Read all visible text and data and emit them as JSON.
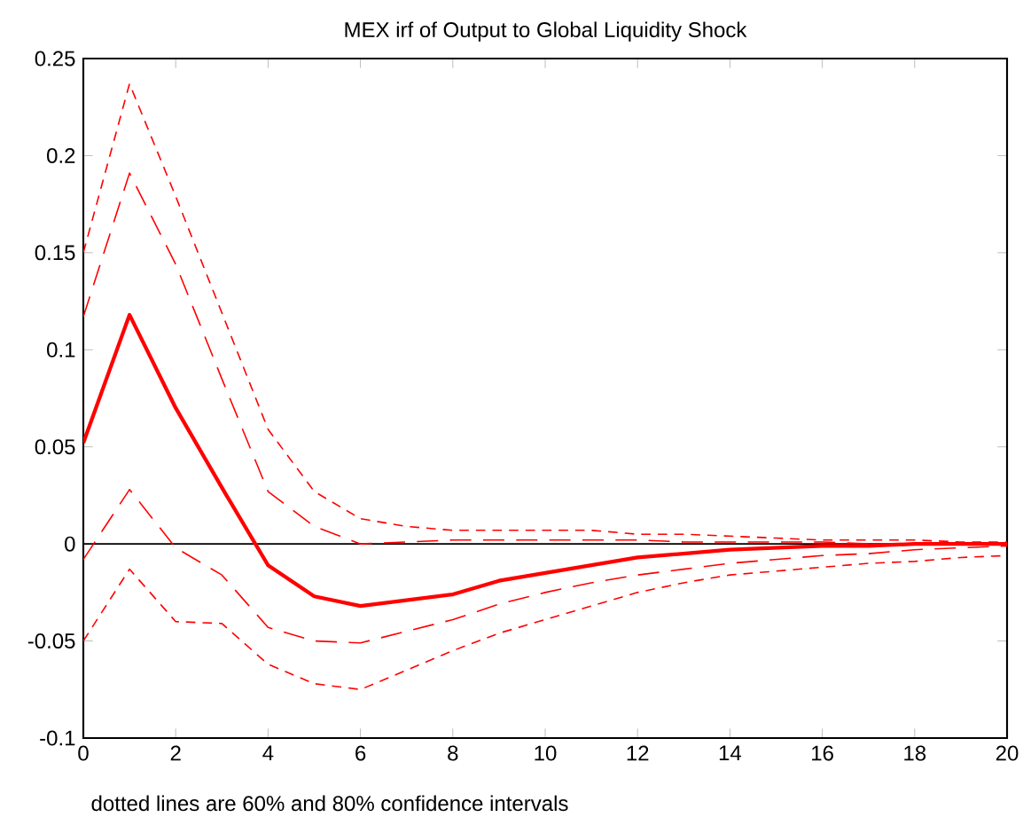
{
  "chart_data": {
    "type": "line",
    "title": "MEX irf of Output to Global Liquidity Shock",
    "x": [
      0,
      1,
      2,
      3,
      4,
      5,
      6,
      7,
      8,
      9,
      10,
      11,
      12,
      13,
      14,
      15,
      16,
      17,
      18,
      19,
      20
    ],
    "series": [
      {
        "color": "#ff0000",
        "line_style": "solid",
        "values": [
          0.052,
          0.118,
          0.07,
          0.029,
          -0.011,
          -0.027,
          -0.032,
          -0.029,
          -0.026,
          -0.019,
          -0.015,
          -0.011,
          -0.007,
          -0.005,
          -0.003,
          -0.002,
          -0.001,
          -0.001,
          0,
          0,
          0
        ]
      },
      {
        "color": "#ff0000",
        "line_style": "dashed",
        "values": [
          0.117,
          0.191,
          0.144,
          0.085,
          0.027,
          0.009,
          0,
          0.001,
          0.002,
          0.002,
          0.002,
          0.002,
          0.002,
          0.001,
          0.001,
          0.001,
          0.001,
          0,
          0,
          0,
          0
        ]
      },
      {
        "color": "#ff0000",
        "line_style": "dashed",
        "values": [
          -0.008,
          0.028,
          -0.002,
          -0.016,
          -0.043,
          -0.05,
          -0.051,
          -0.045,
          -0.039,
          -0.031,
          -0.025,
          -0.02,
          -0.016,
          -0.013,
          -0.01,
          -0.008,
          -0.006,
          -0.005,
          -0.003,
          -0.002,
          -0.001
        ]
      },
      {
        "color": "#ff0000",
        "line_style": "dotted",
        "values": [
          0.15,
          0.237,
          0.179,
          0.119,
          0.059,
          0.027,
          0.013,
          0.009,
          0.007,
          0.007,
          0.007,
          0.007,
          0.005,
          0.005,
          0.004,
          0.003,
          0.002,
          0.002,
          0.002,
          0.001,
          0.001
        ]
      },
      {
        "color": "#ff0000",
        "line_style": "dotted",
        "values": [
          -0.05,
          -0.013,
          -0.04,
          -0.041,
          -0.062,
          -0.072,
          -0.075,
          -0.065,
          -0.055,
          -0.046,
          -0.039,
          -0.032,
          -0.025,
          -0.02,
          -0.016,
          -0.014,
          -0.012,
          -0.01,
          -0.009,
          -0.007,
          -0.006
        ]
      }
    ],
    "ref_lines": [
      {
        "axis": "y",
        "value": 0,
        "color": "#000000"
      }
    ],
    "xlim": [
      0,
      20
    ],
    "xticks": [
      0,
      2,
      4,
      6,
      8,
      10,
      12,
      14,
      16,
      18,
      20
    ],
    "ylim": [
      -0.1,
      0.25
    ],
    "yticks": [
      -0.1,
      -0.05,
      0,
      0.05,
      0.1,
      0.15,
      0.2,
      0.25
    ],
    "grid": false,
    "annotations": [
      "dotted lines are 60% and 80% confidence intervals"
    ]
  }
}
